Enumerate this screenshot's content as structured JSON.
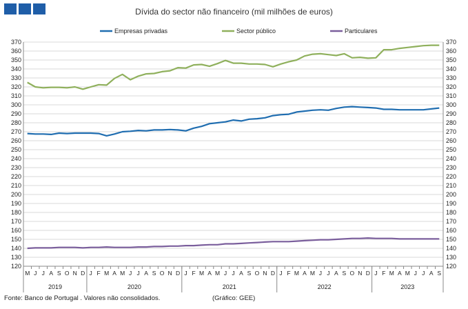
{
  "title": "Dívida do sector não financeiro (mil milhões de euros)",
  "footer": {
    "source": "Fonte: Banco de Portugal . Valores não consolidados.",
    "credit": "(Gráfico: GEE)"
  },
  "chart_data": {
    "type": "line",
    "title": "Dívida do sector não financeiro (mil milhões de euros)",
    "ylim": [
      120,
      370
    ],
    "ytick_step": 10,
    "grid": true,
    "legend_position": "top",
    "month_labels": [
      "M",
      "J",
      "J",
      "A",
      "S",
      "O",
      "N",
      "D",
      "J",
      "F",
      "M",
      "A",
      "M",
      "J",
      "J",
      "A",
      "S",
      "O",
      "N",
      "D",
      "J",
      "F",
      "M",
      "A",
      "M",
      "J",
      "J",
      "A",
      "S",
      "O",
      "N",
      "D",
      "J",
      "F",
      "M",
      "A",
      "M",
      "J",
      "J",
      "A",
      "S",
      "O",
      "N",
      "D",
      "J",
      "F",
      "M",
      "A",
      "M",
      "J",
      "J",
      "A",
      "S"
    ],
    "years": [
      {
        "label": "2019",
        "start": 0,
        "end": 7
      },
      {
        "label": "2020",
        "start": 8,
        "end": 19
      },
      {
        "label": "2021",
        "start": 20,
        "end": 31
      },
      {
        "label": "2022",
        "start": 32,
        "end": 43
      },
      {
        "label": "2023",
        "start": 44,
        "end": 52
      }
    ],
    "series": [
      {
        "name": "Empresas privadas",
        "color": "#1f6db0",
        "values": [
          268,
          267.5,
          267.5,
          267,
          268.5,
          268,
          268.5,
          268.5,
          268.5,
          268,
          265.5,
          267.5,
          270,
          270.5,
          271.5,
          271,
          272,
          272,
          272.5,
          272,
          271,
          274,
          276,
          279,
          280,
          281,
          283,
          282,
          284,
          284.5,
          285.5,
          288,
          289,
          289.5,
          292,
          293,
          294,
          294.5,
          294,
          296,
          297.5,
          298,
          297.5,
          297,
          296.5,
          295,
          295,
          294.5,
          294.5,
          294.5,
          294.5,
          295.5,
          296.5
        ]
      },
      {
        "name": "Sector público",
        "color": "#8fb05c",
        "values": [
          325,
          320,
          319,
          319.5,
          319.5,
          319,
          320,
          317.5,
          320,
          322.5,
          322,
          329.5,
          334,
          328,
          332,
          334.5,
          335,
          337,
          338,
          341.5,
          341,
          344.5,
          345,
          343,
          346,
          349.5,
          346.5,
          346.5,
          345.5,
          345.5,
          345,
          342.5,
          345.5,
          348,
          350,
          354.5,
          356.5,
          357,
          356,
          355,
          357,
          352.5,
          353,
          352,
          352.5,
          361.5,
          361.5,
          363,
          364,
          365,
          366,
          366.5,
          366.5
        ]
      },
      {
        "name": "Particulares",
        "color": "#7a5e9c",
        "values": [
          140,
          140.5,
          140.5,
          140.5,
          141,
          141,
          141,
          140.5,
          141,
          141,
          141.5,
          141,
          141,
          141,
          141.5,
          141.5,
          142,
          142,
          142.5,
          142.5,
          143,
          143,
          143.5,
          144,
          144,
          145,
          145,
          145.5,
          146,
          146.5,
          147,
          147.5,
          147.5,
          147.5,
          148,
          148.5,
          149,
          149.5,
          149.5,
          150,
          150.5,
          151,
          151,
          151.5,
          151,
          151,
          151,
          150.5,
          150.5,
          150.5,
          150.5,
          150.5,
          150.5
        ]
      }
    ]
  }
}
